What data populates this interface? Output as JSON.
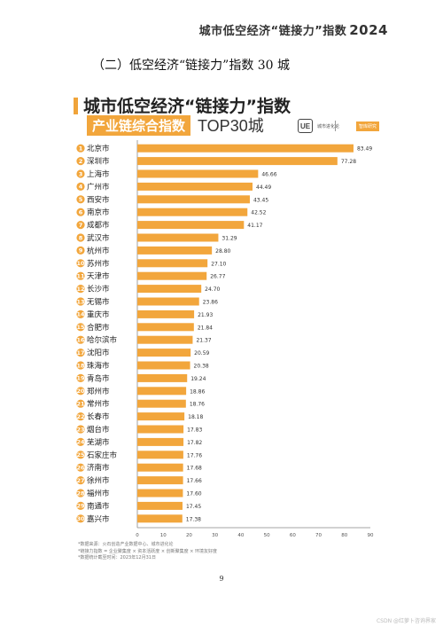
{
  "header": {
    "title": "城市低空经济“链接力”指数",
    "year": "2024"
  },
  "section_heading": "（二）低空经济“链接力”指数 30 城",
  "chart_header": {
    "title": "城市低空经济“链接力”指数",
    "subtitle": "产业链综合指数",
    "subtitle_top": "TOP30城",
    "logo_mark": "UE",
    "logo_text": "城市进化论",
    "badge": "智库研究"
  },
  "colors": {
    "bar": "#f2a63c",
    "rank_badge": "#f2a63c",
    "accent": "#f0a43a"
  },
  "chart_data": {
    "type": "bar",
    "orientation": "horizontal",
    "title": "城市低空经济“链接力”指数",
    "subtitle": "产业链综合指数 TOP30城",
    "ranks": [
      "1",
      "2",
      "3",
      "4",
      "5",
      "6",
      "7",
      "8",
      "9",
      "10",
      "11",
      "12",
      "13",
      "14",
      "15",
      "16",
      "17",
      "18",
      "19",
      "20",
      "21",
      "22",
      "23",
      "24",
      "25",
      "26",
      "27",
      "28",
      "29",
      "30"
    ],
    "categories": [
      "北京市",
      "深圳市",
      "上海市",
      "广州市",
      "西安市",
      "南京市",
      "成都市",
      "武汉市",
      "杭州市",
      "苏州市",
      "天津市",
      "长沙市",
      "无锡市",
      "重庆市",
      "合肥市",
      "哈尔滨市",
      "沈阳市",
      "珠海市",
      "青岛市",
      "郑州市",
      "常州市",
      "长春市",
      "烟台市",
      "芜湖市",
      "石家庄市",
      "济南市",
      "徐州市",
      "福州市",
      "南通市",
      "嘉兴市"
    ],
    "values": [
      83.49,
      77.28,
      46.66,
      44.49,
      43.45,
      42.52,
      41.17,
      31.29,
      28.8,
      27.1,
      26.77,
      24.7,
      23.86,
      21.93,
      21.84,
      21.37,
      20.59,
      20.38,
      19.24,
      18.86,
      18.76,
      18.18,
      17.83,
      17.82,
      17.76,
      17.68,
      17.66,
      17.6,
      17.45,
      17.38
    ],
    "value_labels": [
      "83.49",
      "77.28",
      "46.66",
      "44.49",
      "43.45",
      "42.52",
      "41.17",
      "31.29",
      "28.80",
      "27.10",
      "26.77",
      "24.70",
      "23.86",
      "21.93",
      "21.84",
      "21.37",
      "20.59",
      "20.38",
      "19.24",
      "18.86",
      "18.76",
      "18.18",
      "17.83",
      "17.82",
      "17.76",
      "17.68",
      "17.66",
      "17.60",
      "17.45",
      "17.38"
    ],
    "xlim": [
      0,
      90
    ],
    "xticks": [
      0,
      10,
      20,
      30,
      40,
      50,
      60,
      70,
      80,
      90
    ],
    "xtick_labels": [
      "0",
      "10",
      "20",
      "30",
      "40",
      "50",
      "60",
      "70",
      "80",
      "90"
    ],
    "grid": false,
    "legend": "none"
  },
  "notes": [
    "*数据来源：火石创造产业数据中心、城市进化论",
    "*链接力指数 = 企业聚集度 × 资本活跃度 × 创新聚集度 × 环境友好度",
    "*数据统计截至时间：2023年12月31日"
  ],
  "page_number": "9",
  "watermark": "CSDN @红萝卜咨询界家"
}
